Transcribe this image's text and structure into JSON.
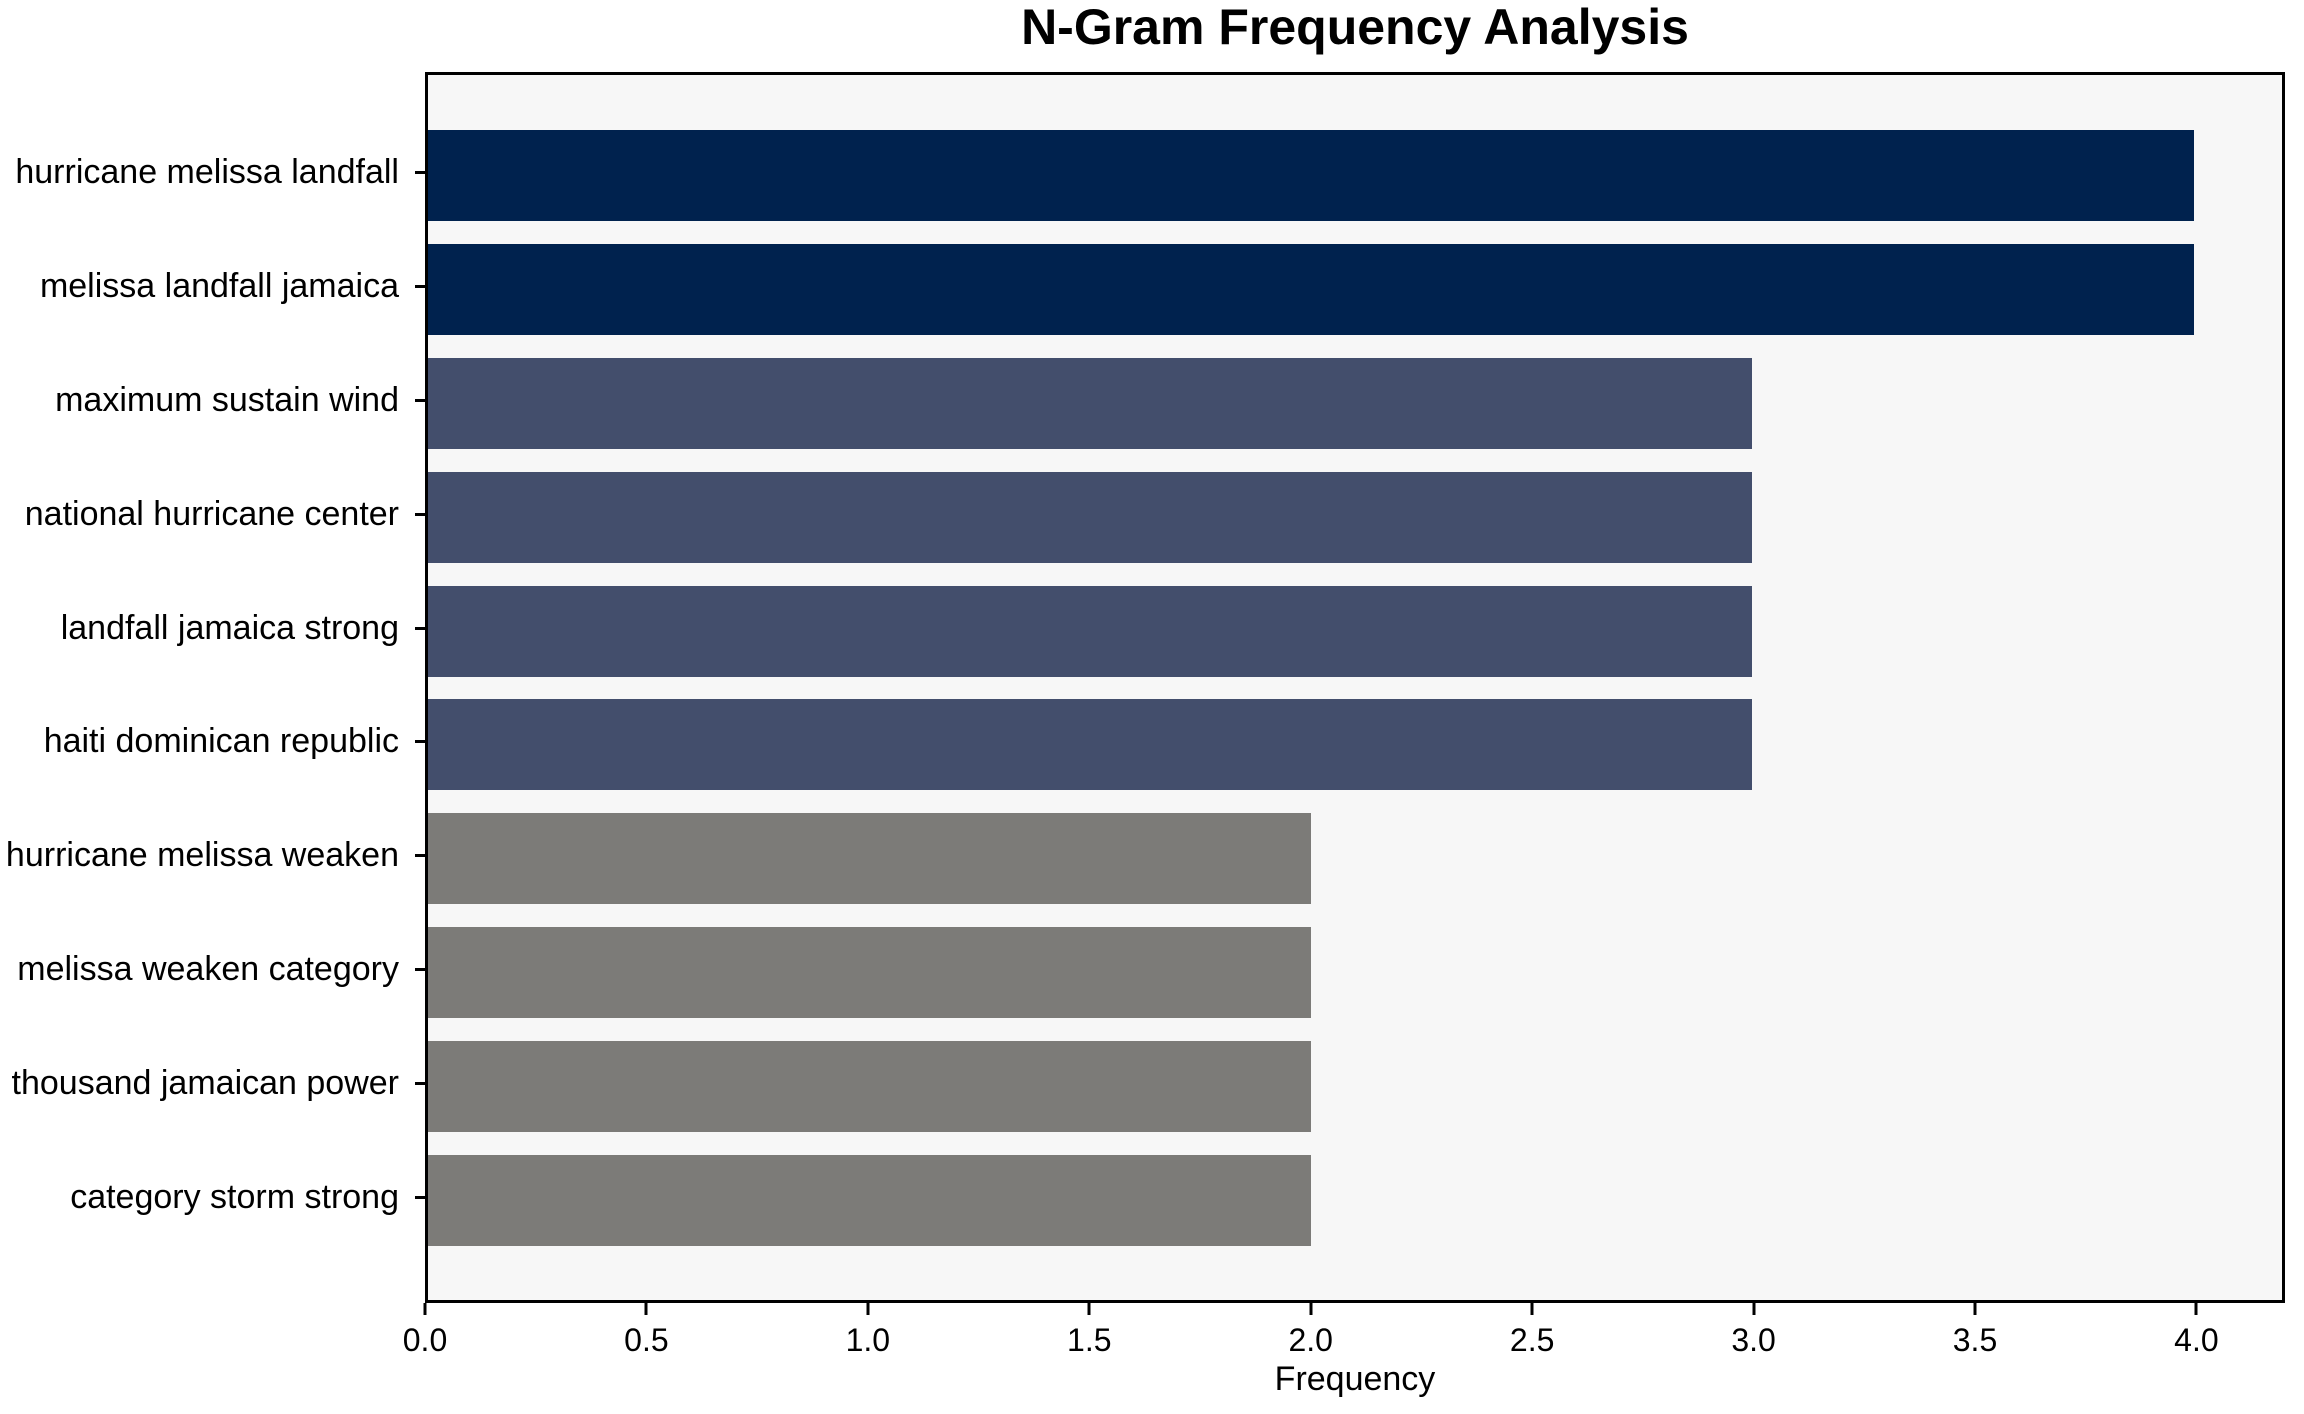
{
  "chart_data": {
    "type": "bar",
    "orientation": "horizontal",
    "title": "N-Gram Frequency Analysis",
    "xlabel": "Frequency",
    "ylabel": "",
    "xlim": [
      0,
      4.2
    ],
    "xtick_values": [
      0,
      0.5,
      1,
      1.5,
      2,
      2.5,
      3,
      3.5,
      4
    ],
    "xtick_labels": [
      "0.0",
      "0.5",
      "1.0",
      "1.5",
      "2.0",
      "2.5",
      "3.0",
      "3.5",
      "4.0"
    ],
    "grid": false,
    "legend_position": "none",
    "plot_background": "#f7f7f7",
    "figure_background": "#ffffff",
    "spine_color": "#000000",
    "categories": [
      "hurricane melissa landfall",
      "melissa landfall jamaica",
      "maximum sustain wind",
      "national hurricane center",
      "landfall jamaica strong",
      "haiti dominican republic",
      "hurricane melissa weaken",
      "melissa weaken category",
      "thousand jamaican power",
      "category storm strong"
    ],
    "values": [
      4,
      4,
      3,
      3,
      3,
      3,
      2,
      2,
      2,
      2
    ],
    "bar_colors": [
      "#00224e",
      "#00224e",
      "#434e6c",
      "#434e6c",
      "#434e6c",
      "#434e6c",
      "#7c7b78",
      "#7c7b78",
      "#7c7b78",
      "#7c7b78"
    ]
  }
}
